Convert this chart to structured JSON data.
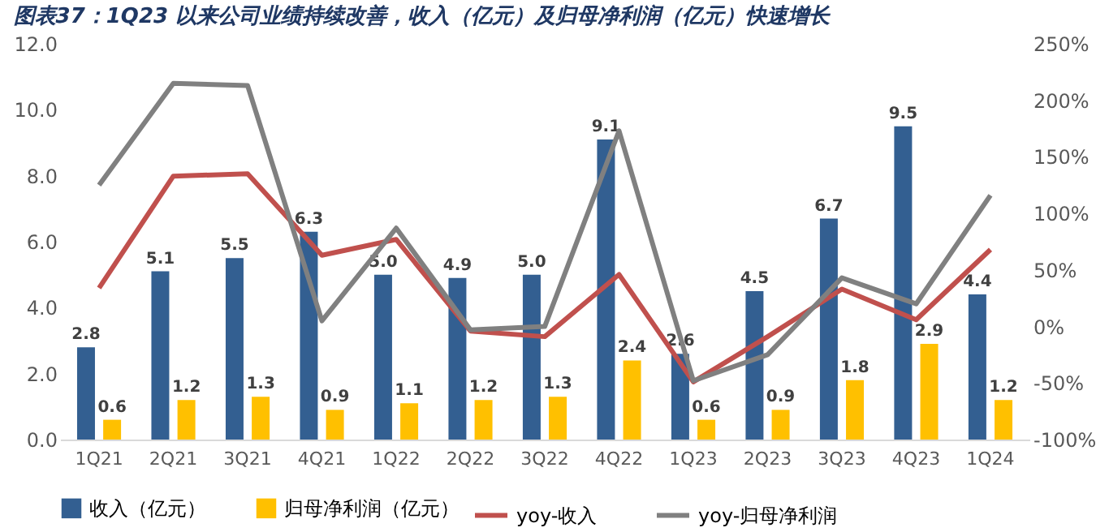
{
  "chart_data": {
    "type": "bar",
    "title": "图表37：1Q23 以来公司业绩持续改善，收入（亿元）及归母净利润（亿元）快速增长",
    "categories": [
      "1Q21",
      "2Q21",
      "3Q21",
      "4Q21",
      "1Q22",
      "2Q22",
      "3Q22",
      "4Q22",
      "1Q23",
      "2Q23",
      "3Q23",
      "4Q23",
      "1Q24"
    ],
    "series": [
      {
        "name": "收入（亿元）",
        "color": "#335f91",
        "values": [
          2.8,
          5.1,
          5.5,
          6.3,
          5.0,
          4.9,
          5.0,
          9.1,
          2.6,
          4.5,
          6.7,
          9.5,
          4.4
        ],
        "value_labels": [
          "2.8",
          "5.1",
          "5.5",
          "6.3",
          "5.0",
          "4.9",
          "5.0",
          "9.1",
          "2.6",
          "4.5",
          "6.7",
          "9.5",
          "4.4"
        ]
      },
      {
        "name": "归母净利润（亿元）",
        "color": "#ffc000",
        "values": [
          0.6,
          1.2,
          1.3,
          0.9,
          1.1,
          1.2,
          1.3,
          2.4,
          0.6,
          0.9,
          1.8,
          2.9,
          1.2
        ],
        "value_labels": [
          "0.6",
          "1.2",
          "1.3",
          "0.9",
          "1.1",
          "1.2",
          "1.3",
          "2.4",
          "0.6",
          "0.9",
          "1.8",
          "2.9",
          "1.2"
        ]
      },
      {
        "name": "yoy-收入",
        "type": "line",
        "axis": "y2",
        "color": "#c0504d",
        "values": [
          34,
          133,
          135,
          63,
          77,
          -4,
          -9,
          46,
          -49,
          -9,
          33,
          6,
          68
        ]
      },
      {
        "name": "yoy-归母净利润",
        "type": "line",
        "axis": "y2",
        "color": "#808080",
        "values": [
          125,
          215,
          213,
          5,
          87,
          -3,
          0,
          173,
          -48,
          -25,
          43,
          20,
          116
        ]
      }
    ],
    "ylim": [
      0,
      12
    ],
    "yticks": [
      {
        "value": 0,
        "label": "0.0"
      },
      {
        "value": 2,
        "label": "2.0"
      },
      {
        "value": 4,
        "label": "4.0"
      },
      {
        "value": 6,
        "label": "6.0"
      },
      {
        "value": 8,
        "label": "8.0"
      },
      {
        "value": 10,
        "label": "10.0"
      },
      {
        "value": 12,
        "label": "12.0"
      }
    ],
    "y2lim": [
      -100,
      250
    ],
    "y2ticks": [
      {
        "value": -100,
        "label": "-100%"
      },
      {
        "value": -50,
        "label": "-50%"
      },
      {
        "value": 0,
        "label": "0%"
      },
      {
        "value": 50,
        "label": "50%"
      },
      {
        "value": 100,
        "label": "100%"
      },
      {
        "value": 150,
        "label": "150%"
      },
      {
        "value": 200,
        "label": "200%"
      },
      {
        "value": 250,
        "label": "250%"
      }
    ],
    "legend": "bottom",
    "grid": false,
    "marker": "none",
    "line_style": "solid"
  }
}
